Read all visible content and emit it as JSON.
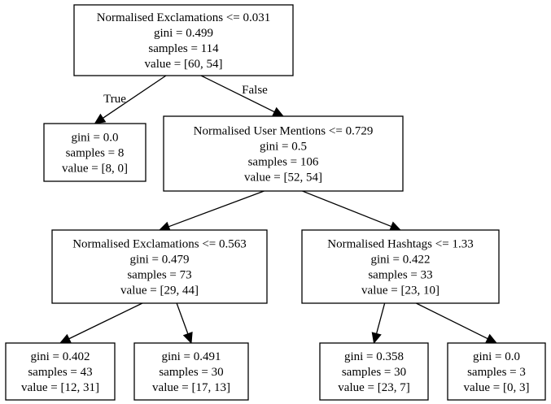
{
  "tree": {
    "nodes": [
      {
        "id": "root",
        "lines": [
          "Normalised Exclamations <= 0.031",
          "gini = 0.499",
          "samples = 114",
          "value = [60, 54]"
        ]
      },
      {
        "id": "leaf-left",
        "lines": [
          "gini = 0.0",
          "samples = 8",
          "value = [8, 0]"
        ]
      },
      {
        "id": "node-user-mentions",
        "lines": [
          "Normalised User Mentions <= 0.729",
          "gini = 0.5",
          "samples = 106",
          "value = [52, 54]"
        ]
      },
      {
        "id": "node-exclamations-2",
        "lines": [
          "Normalised Exclamations <= 0.563",
          "gini = 0.479",
          "samples = 73",
          "value = [29, 44]"
        ]
      },
      {
        "id": "node-hashtags",
        "lines": [
          "Normalised Hashtags <= 1.33",
          "gini = 0.422",
          "samples = 33",
          "value = [23, 10]"
        ]
      },
      {
        "id": "leaf-1",
        "lines": [
          "gini = 0.402",
          "samples = 43",
          "value = [12, 31]"
        ]
      },
      {
        "id": "leaf-2",
        "lines": [
          "gini = 0.491",
          "samples = 30",
          "value = [17, 13]"
        ]
      },
      {
        "id": "leaf-3",
        "lines": [
          "gini = 0.358",
          "samples = 30",
          "value = [23, 7]"
        ]
      },
      {
        "id": "leaf-4",
        "lines": [
          "gini = 0.0",
          "samples = 3",
          "value = [0, 3]"
        ]
      }
    ],
    "edges": [
      {
        "from": "root",
        "to": "leaf-left",
        "label": "True"
      },
      {
        "from": "root",
        "to": "node-user-mentions",
        "label": "False"
      },
      {
        "from": "node-user-mentions",
        "to": "node-exclamations-2",
        "label": ""
      },
      {
        "from": "node-user-mentions",
        "to": "node-hashtags",
        "label": ""
      },
      {
        "from": "node-exclamations-2",
        "to": "leaf-1",
        "label": ""
      },
      {
        "from": "node-exclamations-2",
        "to": "leaf-2",
        "label": ""
      },
      {
        "from": "node-hashtags",
        "to": "leaf-3",
        "label": ""
      },
      {
        "from": "node-hashtags",
        "to": "leaf-4",
        "label": ""
      }
    ]
  }
}
